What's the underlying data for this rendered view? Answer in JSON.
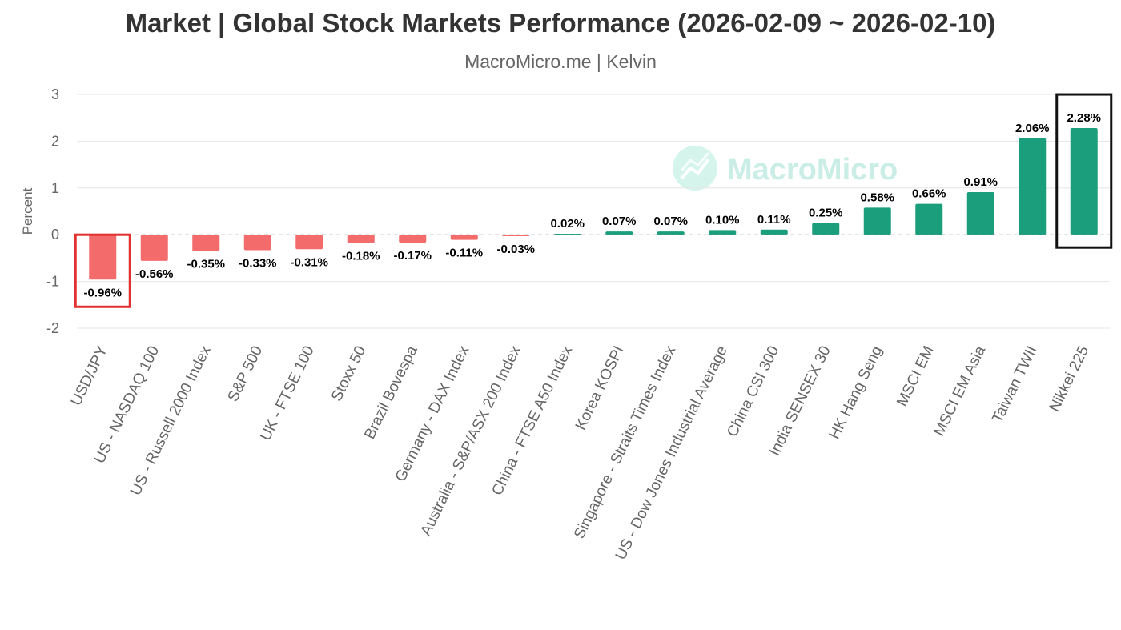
{
  "header": {
    "title": "Market | Global Stock Markets Performance (2026-02-09 ~ 2026-02-10)",
    "subtitle": "MacroMicro.me | Kelvin"
  },
  "watermark": {
    "text": "MacroMicro",
    "icon": "chart-logo-icon"
  },
  "colors": {
    "negative": "#f36b6b",
    "positive": "#1b9e7c",
    "grid": "#e6e6e6",
    "zero_line": "#999999",
    "highlight_negative": "#e03030",
    "highlight_positive": "#111111"
  },
  "chart_data": {
    "type": "bar",
    "title": "Market | Global Stock Markets Performance (2026-02-09 ~ 2026-02-10)",
    "subtitle": "MacroMicro.me | Kelvin",
    "ylabel": "Percent",
    "xlabel": "",
    "ylim": [
      -2,
      3
    ],
    "yticks": [
      -2,
      -1,
      0,
      1,
      2,
      3
    ],
    "grid": true,
    "categories": [
      "USD/JPY",
      "US - NASDAQ 100",
      "US - Russell 2000 Index",
      "S&P 500",
      "UK - FTSE 100",
      "Stoxx 50",
      "Brazil Bovespa",
      "Germany - DAX Index",
      "Australia - S&P/ASX 200 Index",
      "China - FTSE A50 Index",
      "Korea KOSPI",
      "Singapore - Straits Times Index",
      "US - Dow Jones Industrial Average",
      "China CSI 300",
      "India SENSEX 30",
      "HK Hang Seng",
      "MSCI EM",
      "MSCI EM Asia",
      "Taiwan TWII",
      "Nikkei 225"
    ],
    "values": [
      -0.96,
      -0.56,
      -0.35,
      -0.33,
      -0.31,
      -0.18,
      -0.17,
      -0.11,
      -0.03,
      0.02,
      0.07,
      0.07,
      0.1,
      0.11,
      0.25,
      0.58,
      0.66,
      0.91,
      2.06,
      2.28
    ],
    "data_labels": [
      "-0.96%",
      "-0.56%",
      "-0.35%",
      "-0.33%",
      "-0.31%",
      "-0.18%",
      "-0.17%",
      "-0.11%",
      "-0.03%",
      "0.02%",
      "0.07%",
      "0.07%",
      "0.10%",
      "0.11%",
      "0.25%",
      "0.58%",
      "0.66%",
      "0.91%",
      "2.06%",
      "2.28%"
    ],
    "highlighted": [
      "USD/JPY",
      "Nikkei 225"
    ]
  }
}
